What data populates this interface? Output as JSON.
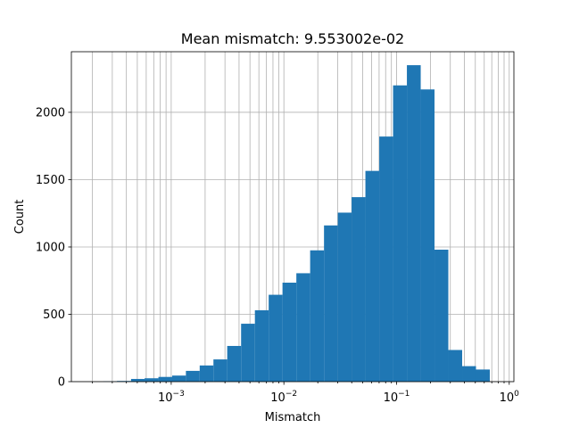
{
  "chart_data": {
    "type": "bar",
    "title": "Mean mismatch: 9.553002e-02",
    "xlabel": "Mismatch",
    "ylabel": "Count",
    "x_scale": "log",
    "xlim": [
      0.00013,
      1.1
    ],
    "ylim": [
      0,
      2450
    ],
    "grid": true,
    "bar_color": "#1f77b4",
    "x_tick_labels": [
      {
        "value": 0.001,
        "base": "10",
        "exp": "−3"
      },
      {
        "value": 0.01,
        "base": "10",
        "exp": "−2"
      },
      {
        "value": 0.1,
        "base": "10",
        "exp": "−1"
      },
      {
        "value": 1,
        "base": "10",
        "exp": "0"
      }
    ],
    "y_ticks": [
      0,
      500,
      1000,
      1500,
      2000
    ],
    "bins": [
      {
        "x0": 0.00025,
        "x1": 0.00033,
        "count": 2
      },
      {
        "x0": 0.00033,
        "x1": 0.00044,
        "count": 5
      },
      {
        "x0": 0.00044,
        "x1": 0.00058,
        "count": 20
      },
      {
        "x0": 0.00058,
        "x1": 0.00077,
        "count": 25
      },
      {
        "x0": 0.00077,
        "x1": 0.00102,
        "count": 35
      },
      {
        "x0": 0.00102,
        "x1": 0.00135,
        "count": 45
      },
      {
        "x0": 0.00135,
        "x1": 0.00179,
        "count": 80
      },
      {
        "x0": 0.00179,
        "x1": 0.00237,
        "count": 120
      },
      {
        "x0": 0.00237,
        "x1": 0.00314,
        "count": 165
      },
      {
        "x0": 0.00314,
        "x1": 0.00417,
        "count": 265
      },
      {
        "x0": 0.00417,
        "x1": 0.00553,
        "count": 430
      },
      {
        "x0": 0.00553,
        "x1": 0.00733,
        "count": 530
      },
      {
        "x0": 0.00733,
        "x1": 0.00972,
        "count": 645
      },
      {
        "x0": 0.00972,
        "x1": 0.0129,
        "count": 735
      },
      {
        "x0": 0.0129,
        "x1": 0.0171,
        "count": 805
      },
      {
        "x0": 0.0171,
        "x1": 0.0227,
        "count": 975
      },
      {
        "x0": 0.0227,
        "x1": 0.0301,
        "count": 1160
      },
      {
        "x0": 0.0301,
        "x1": 0.0399,
        "count": 1255
      },
      {
        "x0": 0.0399,
        "x1": 0.0529,
        "count": 1370
      },
      {
        "x0": 0.0529,
        "x1": 0.0702,
        "count": 1565
      },
      {
        "x0": 0.0702,
        "x1": 0.0931,
        "count": 1820
      },
      {
        "x0": 0.0931,
        "x1": 0.1235,
        "count": 2200
      },
      {
        "x0": 0.1235,
        "x1": 0.1638,
        "count": 2350
      },
      {
        "x0": 0.1638,
        "x1": 0.2172,
        "count": 2170
      },
      {
        "x0": 0.2172,
        "x1": 0.2881,
        "count": 980
      },
      {
        "x0": 0.2881,
        "x1": 0.3821,
        "count": 235
      },
      {
        "x0": 0.3821,
        "x1": 0.5068,
        "count": 115
      },
      {
        "x0": 0.5068,
        "x1": 0.6722,
        "count": 90
      }
    ]
  }
}
